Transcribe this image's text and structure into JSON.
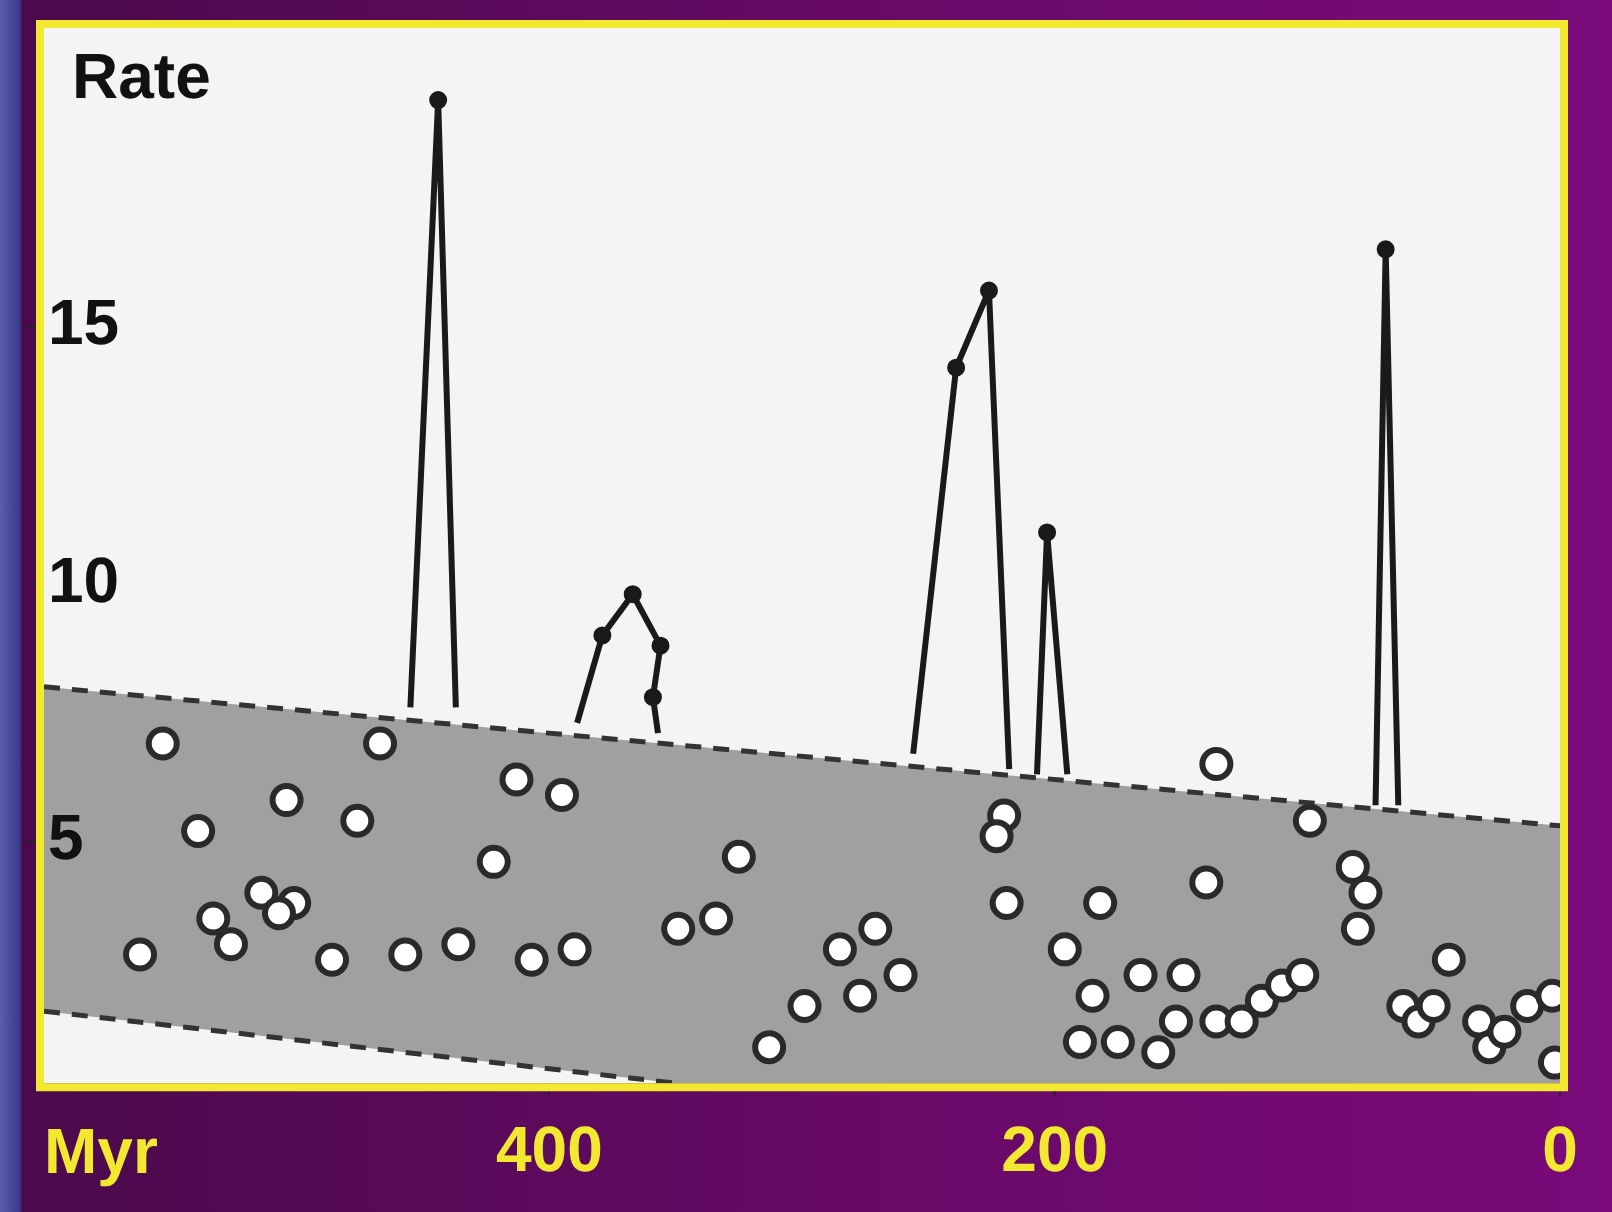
{
  "chart_data": {
    "type": "scatter",
    "xlabel": "Myr",
    "ylabel": "Rate",
    "xlim": [
      600,
      0
    ],
    "xticks": [
      400,
      200,
      0
    ],
    "ylim": [
      0.3,
      20.8
    ],
    "yticks": [
      5,
      10,
      15
    ],
    "grid": false,
    "legend": false,
    "series": [
      {
        "type": "area",
        "color": "#a0a0a0",
        "line_style": "dashed",
        "x": [
          600,
          0
        ],
        "values": [
          8.0,
          5.3
        ]
      },
      {
        "type": "area",
        "color": "#f4f4f4",
        "line_style": "dashed",
        "x": [
          600,
          350
        ],
        "values": [
          1.7,
          0.3
        ]
      },
      {
        "type": "line",
        "color": "#1a1a1a",
        "marker": "none",
        "x": [
          455,
          444,
          437
        ],
        "values": [
          7.6,
          19.4,
          7.6
        ]
      },
      {
        "type": "line",
        "color": "#1a1a1a",
        "marker": "none",
        "x": [
          389,
          379,
          367,
          356,
          359,
          357
        ],
        "values": [
          7.3,
          9.0,
          9.8,
          8.8,
          7.8,
          7.1
        ]
      },
      {
        "type": "line",
        "color": "#1a1a1a",
        "marker": "none",
        "x": [
          256,
          239,
          226,
          218
        ],
        "values": [
          6.7,
          14.2,
          15.7,
          6.4
        ]
      },
      {
        "type": "line",
        "color": "#1a1a1a",
        "marker": "none",
        "x": [
          207,
          203,
          195
        ],
        "values": [
          6.3,
          11.0,
          6.3
        ]
      },
      {
        "type": "line",
        "color": "#1a1a1a",
        "marker": "none",
        "x": [
          73,
          69,
          64
        ],
        "values": [
          5.7,
          16.5,
          5.7
        ]
      },
      {
        "color": "#1a1a1a",
        "marker": "circle",
        "x": [
          444,
          379,
          367,
          356,
          359,
          239,
          226,
          203,
          69
        ],
        "values": [
          19.4,
          9.0,
          9.8,
          8.8,
          7.8,
          14.2,
          15.7,
          11.0,
          16.5
        ]
      },
      {
        "color": "#2a2a2a",
        "marker": "circle",
        "x": [
          553,
          467,
          539,
          504,
          476,
          413,
          395,
          422,
          325,
          514,
          501,
          507,
          533,
          526,
          562,
          486,
          457,
          436,
          407,
          390,
          349,
          334,
          313,
          299,
          285,
          271,
          277,
          261,
          220,
          223,
          219,
          182,
          196,
          185,
          190,
          175,
          159,
          166,
          149,
          152,
          136,
          126,
          118,
          110,
          102,
          140,
          136,
          99,
          82,
          77,
          80,
          44,
          62,
          56,
          50,
          32,
          28,
          22,
          13,
          3,
          2
        ],
        "values": [
          6.9,
          6.9,
          5.2,
          5.8,
          5.4,
          6.2,
          5.9,
          4.6,
          4.7,
          4.0,
          3.8,
          3.6,
          3.5,
          3.0,
          2.8,
          2.7,
          2.8,
          3.0,
          2.7,
          2.9,
          3.3,
          3.5,
          1.0,
          1.8,
          2.9,
          3.3,
          2.0,
          2.4,
          5.5,
          5.1,
          3.8,
          3.8,
          2.9,
          2.0,
          1.1,
          1.1,
          0.9,
          2.4,
          2.4,
          1.5,
          1.5,
          1.5,
          1.9,
          2.2,
          2.4,
          4.2,
          6.5,
          5.4,
          4.5,
          4.0,
          3.3,
          2.7,
          1.8,
          1.5,
          1.8,
          1.5,
          1.0,
          1.3,
          1.8,
          2.0,
          0.7
        ]
      }
    ]
  }
}
